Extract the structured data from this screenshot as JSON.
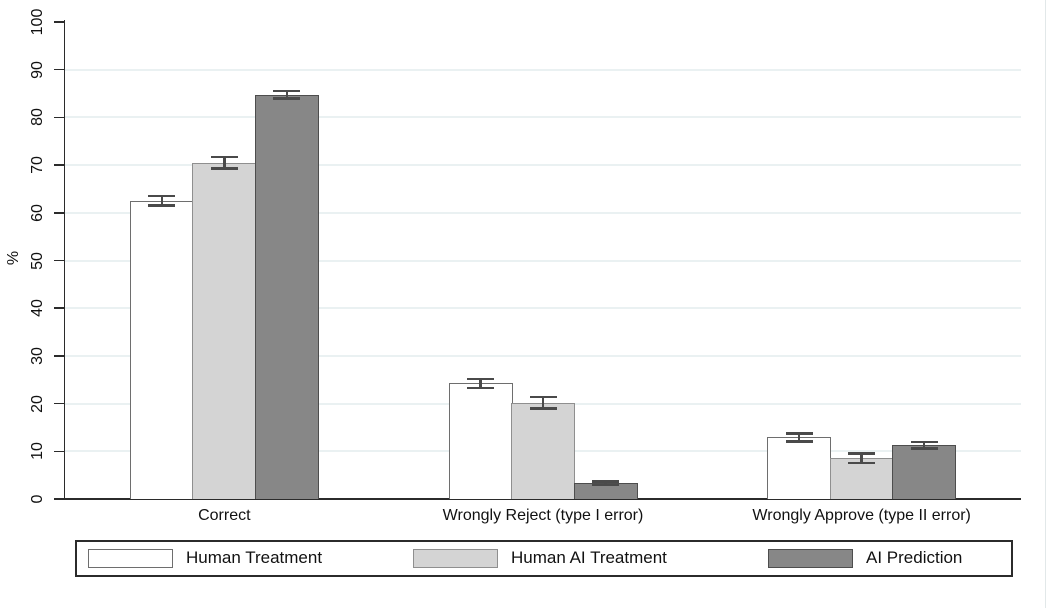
{
  "chart_data": {
    "type": "bar",
    "title": "",
    "xlabel": "",
    "ylabel": "%",
    "ylim": [
      0,
      100
    ],
    "yticks": [
      0,
      10,
      20,
      30,
      40,
      50,
      60,
      70,
      80,
      90,
      100
    ],
    "grid": "horizontal gridlines at 10 through 90, none at 100",
    "legend_position": "bottom, boxed, horizontal",
    "categories": [
      "Correct",
      "Wrongly Reject (type I error)",
      "Wrongly Approve (type II error)"
    ],
    "series": [
      {
        "name": "Human Treatment",
        "fill": "#ffffff",
        "stroke": "#6e6e6e",
        "values": [
          62.5,
          24.3,
          12.9
        ],
        "ci_low": [
          61.5,
          23.3,
          12.1
        ],
        "ci_high": [
          63.5,
          25.2,
          13.7
        ]
      },
      {
        "name": "Human AI Treatment",
        "fill": "#d4d4d4",
        "stroke": "#8f8f8f",
        "values": [
          70.5,
          20.2,
          8.5
        ],
        "ci_low": [
          69.3,
          19.0,
          7.5
        ],
        "ci_high": [
          71.7,
          21.4,
          9.5
        ]
      },
      {
        "name": "AI Prediction",
        "fill": "#878787",
        "stroke": "#4d4d4d",
        "values": [
          84.7,
          3.3,
          11.3
        ],
        "ci_low": [
          84.0,
          2.9,
          10.6
        ],
        "ci_high": [
          85.5,
          3.7,
          12.0
        ]
      }
    ],
    "error_bars": true,
    "error_bar_color": "#4a4a4a",
    "gridline_color": "#eaf1f2",
    "axis_color": "#2b2b2b",
    "text_color": "#111111",
    "background_color": "#ffffff"
  }
}
